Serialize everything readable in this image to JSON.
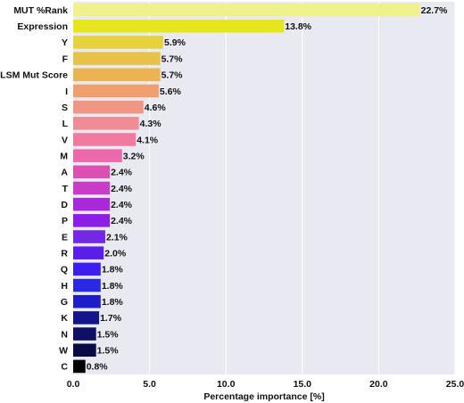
{
  "chart_data": {
    "type": "bar",
    "orientation": "horizontal",
    "categories": [
      "MUT %Rank",
      "Expression",
      "Y",
      "F",
      "BLSM Mut Score",
      "I",
      "S",
      "L",
      "V",
      "M",
      "A",
      "T",
      "D",
      "P",
      "E",
      "R",
      "Q",
      "H",
      "G",
      "K",
      "N",
      "W",
      "C"
    ],
    "values": [
      22.7,
      13.8,
      5.9,
      5.7,
      5.7,
      5.6,
      4.6,
      4.3,
      4.1,
      3.2,
      2.4,
      2.4,
      2.4,
      2.4,
      2.1,
      2.0,
      1.8,
      1.8,
      1.8,
      1.7,
      1.5,
      1.5,
      0.8
    ],
    "value_labels": [
      "22.7%",
      "13.8%",
      "5.9%",
      "5.7%",
      "5.7%",
      "5.6%",
      "4.6%",
      "4.3%",
      "4.1%",
      "3.2%",
      "2.4%",
      "2.4%",
      "2.4%",
      "2.4%",
      "2.1%",
      "2.0%",
      "1.8%",
      "1.8%",
      "1.8%",
      "1.7%",
      "1.5%",
      "1.5%",
      "0.8%"
    ],
    "colors": [
      "#f0f08c",
      "#e6e61e",
      "#e6d23c",
      "#e6c346",
      "#ebb450",
      "#efa06e",
      "#f09682",
      "#f08c96",
      "#f07aa0",
      "#eb69aa",
      "#dc50b4",
      "#c83cc8",
      "#aa28dc",
      "#8c1ee6",
      "#7328e6",
      "#5a1eeb",
      "#3c1ef0",
      "#2828e6",
      "#1e1ec8",
      "#14148c",
      "#0f0f64",
      "#0a0a46",
      "#000000"
    ],
    "xlabel": "Percentage importance [%]",
    "xlim": [
      0,
      25
    ],
    "xticks": [
      0,
      5,
      10,
      15,
      20,
      25
    ],
    "xtick_labels": [
      "0.0",
      "5.0",
      "10.0",
      "15.0",
      "20.0",
      "25.0"
    ],
    "background": "#e9e9f1",
    "grid": true,
    "grid_color": "#ffffff"
  }
}
